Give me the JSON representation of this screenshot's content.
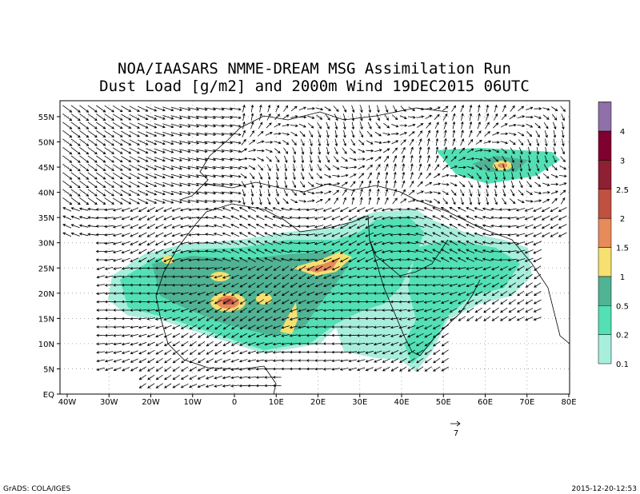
{
  "title": [
    "NOA/IAASARS NMME-DREAM MSG Assimilation Run",
    "Dust Load [g/m2] and 2000m Wind 19DEC2015 06UTC"
  ],
  "x_axis_labels": [
    "40W",
    "30W",
    "20W",
    "10W",
    "0",
    "10E",
    "20E",
    "30E",
    "40E",
    "50E",
    "60E",
    "70E",
    "80E"
  ],
  "y_axis_labels": [
    "EQ",
    "5N",
    "10N",
    "15N",
    "20N",
    "25N",
    "30N",
    "35N",
    "40N",
    "45N",
    "50N",
    "55N"
  ],
  "colorbar_labels": [
    "0.1",
    "0.2",
    "0.5",
    "1",
    "1.5",
    "2",
    "2.5",
    "3",
    "4"
  ],
  "reference_vector_label": "7",
  "footer_left": "GrADS: COLA/IGES",
  "footer_right": "2015-12-20-12:53"
}
